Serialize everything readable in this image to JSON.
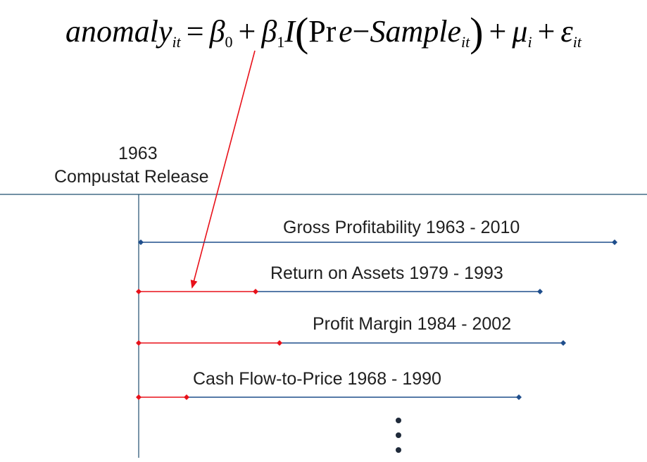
{
  "equation": {
    "lhs": "anomaly",
    "lhs_sub": "it",
    "equals": "=",
    "beta0": "β",
    "beta0_sub": "0",
    "plus1": "+",
    "beta1": "β",
    "beta1_sub": "1",
    "indicator": "I",
    "open_paren": "(",
    "pr": "Pr",
    "e": "e",
    "minus": "−",
    "sample": "Sample",
    "sample_sub": "it",
    "close_paren": ")",
    "plus2": "+",
    "mu": "μ",
    "mu_sub": "i",
    "plus3": "+",
    "eps": "ε",
    "eps_sub": "it"
  },
  "release": {
    "year": "1963",
    "name": "Compustat Release"
  },
  "colors": {
    "pre_sample": "#e8111a",
    "sample": "#1f4e8c",
    "axis": "#1f4e6e",
    "text": "#1f1f1f"
  },
  "timelines": [
    {
      "label": "Gross Profitability 1963 - 2010",
      "has_pre_sample": false
    },
    {
      "label": "Return on Assets 1979 - 1993",
      "has_pre_sample": true
    },
    {
      "label": "Profit Margin 1984 - 2002",
      "has_pre_sample": true
    },
    {
      "label": "Cash Flow-to-Price 1968 - 1990",
      "has_pre_sample": true
    }
  ],
  "continuation": "more-anomalies-ellipsis"
}
